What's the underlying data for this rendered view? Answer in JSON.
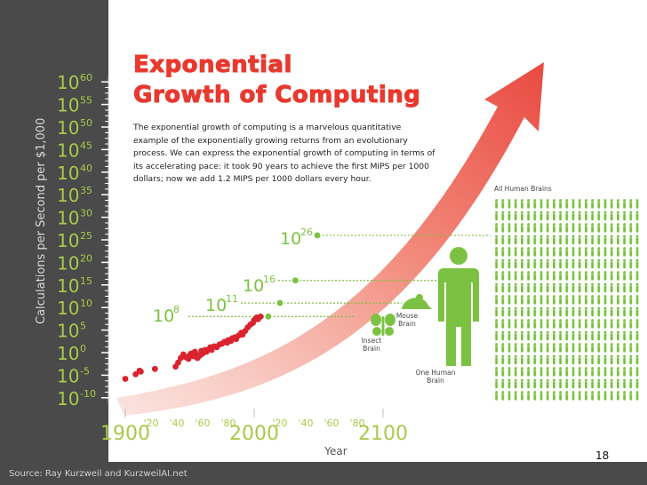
{
  "title_line1": "Exponential",
  "title_line2": "Growth of Computing",
  "description": "The exponential growth of computing is a marvelous quantitative example of the exponentially growing returns from an evolutionary process. We can express the exponential growth of computing in terms of its accelerating pace: it took 90 years to achieve the first MIPS per 1000 dollars; now we add 1.2 MIPS per 1000 dollars every hour.",
  "source": "Source: Ray Kurzweil and KurzweilAI.net",
  "page_number": "18",
  "colors": {
    "background": "#4a4a4a",
    "panel": "#ffffff",
    "accent_red": "#e8392f",
    "axis_text": "#a9c94a",
    "brain_green": "#7cc242",
    "point_red": "#d9232e"
  },
  "chart_data": {
    "type": "scatter",
    "title": "Exponential Growth of Computing",
    "xlabel": "Year",
    "ylabel": "Calculations per Second per $1,000",
    "xlim": [
      1890,
      2110
    ],
    "ylim": [
      -10,
      60
    ],
    "y_log_scale": true,
    "x_major_ticks": [
      {
        "value": 1900,
        "label": "1900"
      },
      {
        "value": 2000,
        "label": "2000"
      },
      {
        "value": 2100,
        "label": "2100"
      }
    ],
    "x_minor_ticks": [
      {
        "value": 1920,
        "label": "'20"
      },
      {
        "value": 1940,
        "label": "'40"
      },
      {
        "value": 1960,
        "label": "'60"
      },
      {
        "value": 1980,
        "label": "'80"
      },
      {
        "value": 2020,
        "label": "'20"
      },
      {
        "value": 2040,
        "label": "'40"
      },
      {
        "value": 2060,
        "label": "'60"
      },
      {
        "value": 2080,
        "label": "'80"
      }
    ],
    "y_ticks": [
      {
        "exp": 60,
        "label": "60"
      },
      {
        "exp": 55,
        "label": "55"
      },
      {
        "exp": 50,
        "label": "50"
      },
      {
        "exp": 45,
        "label": "45"
      },
      {
        "exp": 40,
        "label": "40"
      },
      {
        "exp": 35,
        "label": "35"
      },
      {
        "exp": 30,
        "label": "30"
      },
      {
        "exp": 25,
        "label": "25"
      },
      {
        "exp": 20,
        "label": "20"
      },
      {
        "exp": 15,
        "label": "15"
      },
      {
        "exp": 10,
        "label": "10"
      },
      {
        "exp": 5,
        "label": "5"
      },
      {
        "exp": 0,
        "label": "0"
      },
      {
        "exp": -5,
        "label": "-5"
      },
      {
        "exp": -10,
        "label": "-10"
      }
    ],
    "y_tick_base": "10",
    "points": [
      {
        "x": 1900,
        "y": -5.8
      },
      {
        "x": 1908,
        "y": -4.8
      },
      {
        "x": 1911,
        "y": -4.0
      },
      {
        "x": 1912,
        "y": -4.2
      },
      {
        "x": 1923,
        "y": -3.6
      },
      {
        "x": 1939,
        "y": -3.1
      },
      {
        "x": 1941,
        "y": -2.2
      },
      {
        "x": 1943,
        "y": -1.2
      },
      {
        "x": 1945,
        "y": -0.4
      },
      {
        "x": 1947,
        "y": -1.0
      },
      {
        "x": 1949,
        "y": -1.4
      },
      {
        "x": 1950,
        "y": -0.6
      },
      {
        "x": 1951,
        "y": -0.2
      },
      {
        "x": 1953,
        "y": -0.8
      },
      {
        "x": 1954,
        "y": 0.2
      },
      {
        "x": 1955,
        "y": -0.4
      },
      {
        "x": 1956,
        "y": -1.2
      },
      {
        "x": 1958,
        "y": -0.6
      },
      {
        "x": 1959,
        "y": 0.4
      },
      {
        "x": 1960,
        "y": -0.2
      },
      {
        "x": 1962,
        "y": 0.6
      },
      {
        "x": 1963,
        "y": 0.2
      },
      {
        "x": 1965,
        "y": 0.8
      },
      {
        "x": 1966,
        "y": 1.2
      },
      {
        "x": 1967,
        "y": 0.6
      },
      {
        "x": 1969,
        "y": 1.4
      },
      {
        "x": 1971,
        "y": 1.2
      },
      {
        "x": 1973,
        "y": 1.8
      },
      {
        "x": 1975,
        "y": 2.0
      },
      {
        "x": 1977,
        "y": 2.4
      },
      {
        "x": 1979,
        "y": 2.2
      },
      {
        "x": 1980,
        "y": 2.8
      },
      {
        "x": 1982,
        "y": 2.6
      },
      {
        "x": 1983,
        "y": 3.2
      },
      {
        "x": 1985,
        "y": 3.4
      },
      {
        "x": 1986,
        "y": 3.0
      },
      {
        "x": 1988,
        "y": 3.8
      },
      {
        "x": 1990,
        "y": 4.4
      },
      {
        "x": 1991,
        "y": 4.0
      },
      {
        "x": 1993,
        "y": 4.8
      },
      {
        "x": 1995,
        "y": 5.6
      },
      {
        "x": 1997,
        "y": 6.2
      },
      {
        "x": 1999,
        "y": 6.6
      },
      {
        "x": 2000,
        "y": 7.2
      },
      {
        "x": 2002,
        "y": 7.8
      },
      {
        "x": 2003,
        "y": 7.4
      },
      {
        "x": 2005,
        "y": 8.0
      }
    ],
    "annotations": [
      {
        "label": "Insect Brain",
        "level_base": "10",
        "level_exp": "8",
        "x": 2011,
        "y": 8
      },
      {
        "label": "Mouse Brain",
        "level_base": "10",
        "level_exp": "11",
        "x": 2020,
        "y": 11
      },
      {
        "label": "One Human Brain",
        "level_base": "10",
        "level_exp": "16",
        "x": 2032,
        "y": 16
      },
      {
        "label": "All Human Brains",
        "level_base": "10",
        "level_exp": "26",
        "x": 2049,
        "y": 26
      }
    ]
  }
}
